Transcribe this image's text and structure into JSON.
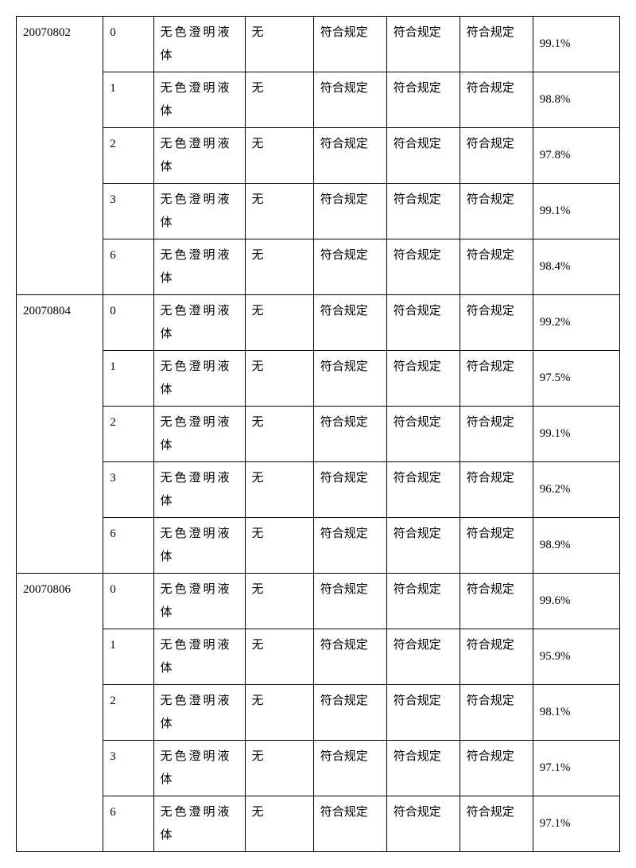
{
  "table": {
    "groups": [
      {
        "id": "20070802",
        "rows": [
          {
            "num": "0",
            "desc": "无色澄明液体",
            "c3": "无",
            "c4": "符合规定",
            "c5": "符合规定",
            "c6": "符合规定",
            "pct": "99.1%"
          },
          {
            "num": "1",
            "desc": "无色澄明液体",
            "c3": "无",
            "c4": "符合规定",
            "c5": "符合规定",
            "c6": "符合规定",
            "pct": "98.8%"
          },
          {
            "num": "2",
            "desc": "无色澄明液体",
            "c3": "无",
            "c4": "符合规定",
            "c5": "符合规定",
            "c6": "符合规定",
            "pct": "97.8%"
          },
          {
            "num": "3",
            "desc": "无色澄明液体",
            "c3": "无",
            "c4": "符合规定",
            "c5": "符合规定",
            "c6": "符合规定",
            "pct": "99.1%"
          },
          {
            "num": "6",
            "desc": "无色澄明液体",
            "c3": "无",
            "c4": "符合规定",
            "c5": "符合规定",
            "c6": "符合规定",
            "pct": "98.4%"
          }
        ]
      },
      {
        "id": "20070804",
        "rows": [
          {
            "num": "0",
            "desc": "无色澄明液体",
            "c3": "无",
            "c4": "符合规定",
            "c5": "符合规定",
            "c6": "符合规定",
            "pct": "99.2%"
          },
          {
            "num": "1",
            "desc": "无色澄明液体",
            "c3": "无",
            "c4": "符合规定",
            "c5": "符合规定",
            "c6": "符合规定",
            "pct": "97.5%"
          },
          {
            "num": "2",
            "desc": "无色澄明液体",
            "c3": "无",
            "c4": "符合规定",
            "c5": "符合规定",
            "c6": "符合规定",
            "pct": "99.1%"
          },
          {
            "num": "3",
            "desc": "无色澄明液体",
            "c3": "无",
            "c4": "符合规定",
            "c5": "符合规定",
            "c6": "符合规定",
            "pct": "96.2%"
          },
          {
            "num": "6",
            "desc": "无色澄明液体",
            "c3": "无",
            "c4": "符合规定",
            "c5": "符合规定",
            "c6": "符合规定",
            "pct": "98.9%"
          }
        ]
      },
      {
        "id": "20070806",
        "rows": [
          {
            "num": "0",
            "desc": "无色澄明液体",
            "c3": "无",
            "c4": "符合规定",
            "c5": "符合规定",
            "c6": "符合规定",
            "pct": "99.6%"
          },
          {
            "num": "1",
            "desc": "无色澄明液体",
            "c3": "无",
            "c4": "符合规定",
            "c5": "符合规定",
            "c6": "符合规定",
            "pct": "95.9%"
          },
          {
            "num": "2",
            "desc": "无色澄明液体",
            "c3": "无",
            "c4": "符合规定",
            "c5": "符合规定",
            "c6": "符合规定",
            "pct": "98.1%"
          },
          {
            "num": "3",
            "desc": "无色澄明液体",
            "c3": "无",
            "c4": "符合规定",
            "c5": "符合规定",
            "c6": "符合规定",
            "pct": "97.1%"
          },
          {
            "num": "6",
            "desc": "无色澄明液体",
            "c3": "无",
            "c4": "符合规定",
            "c5": "符合规定",
            "c6": "符合规定",
            "pct": "97.1%"
          }
        ]
      }
    ]
  }
}
